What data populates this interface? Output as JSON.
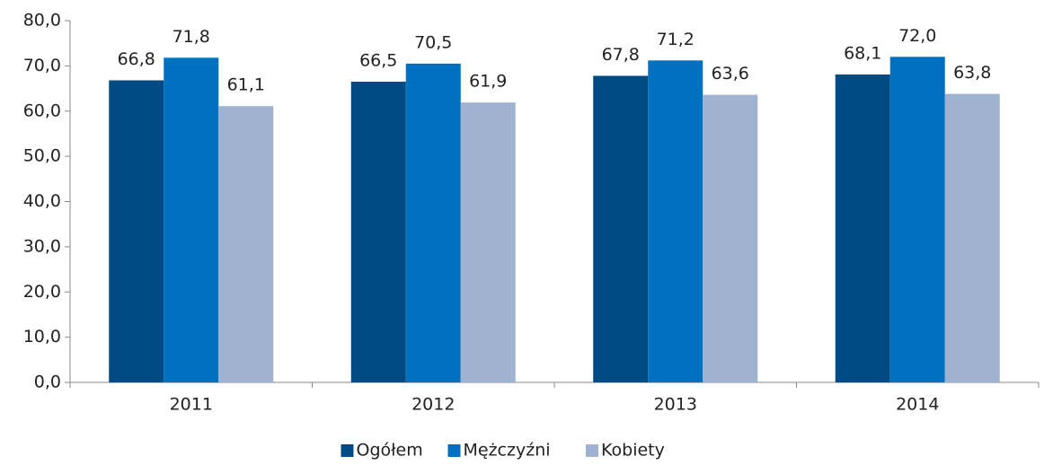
{
  "chart_data": {
    "type": "bar",
    "categories": [
      "2011",
      "2012",
      "2013",
      "2014"
    ],
    "series": [
      {
        "name": "Ogółem",
        "color": "#004b84",
        "values": [
          66.8,
          66.5,
          67.8,
          68.1
        ],
        "value_labels": [
          "66,8",
          "66,5",
          "67,8",
          "68,1"
        ]
      },
      {
        "name": "Mężczyźni",
        "color": "#0070bf",
        "values": [
          71.8,
          70.5,
          71.2,
          72.0
        ],
        "value_labels": [
          "71,8",
          "70,5",
          "71,2",
          "72,0"
        ]
      },
      {
        "name": "Kobiety",
        "color": "#9fb2d0",
        "values": [
          61.1,
          61.9,
          63.6,
          63.8
        ],
        "value_labels": [
          "61,1",
          "61,9",
          "63,6",
          "63,8"
        ]
      }
    ],
    "ylim": [
      0,
      80
    ],
    "yticks": [
      {
        "value": 0,
        "label": "0,0"
      },
      {
        "value": 10,
        "label": "10,0"
      },
      {
        "value": 20,
        "label": "20,0"
      },
      {
        "value": 30,
        "label": "30,0"
      },
      {
        "value": 40,
        "label": "40,0"
      },
      {
        "value": 50,
        "label": "50,0"
      },
      {
        "value": 60,
        "label": "60,0"
      },
      {
        "value": 70,
        "label": "70,0"
      },
      {
        "value": 80,
        "label": "80,0"
      }
    ],
    "legend": "bottom"
  }
}
